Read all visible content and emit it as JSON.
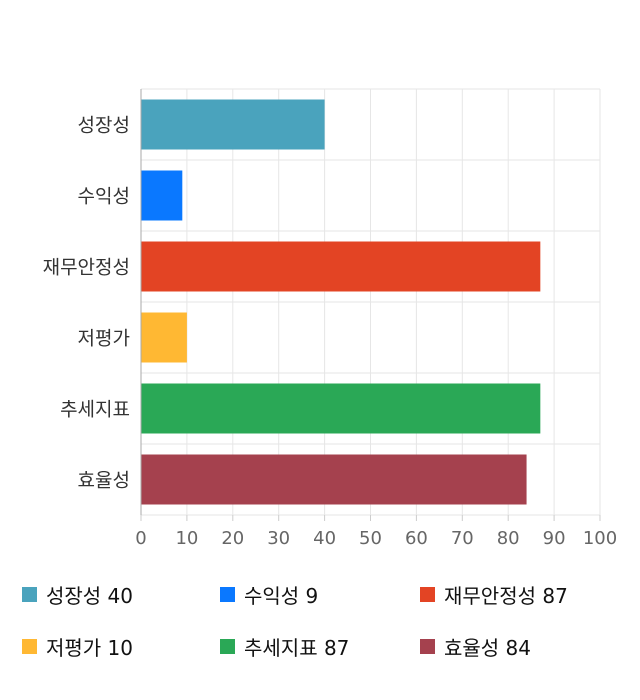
{
  "chart_data": {
    "type": "bar",
    "orientation": "horizontal",
    "categories": [
      "성장성",
      "수익성",
      "재무안정성",
      "저평가",
      "추세지표",
      "효율성"
    ],
    "values": [
      40,
      9,
      87,
      10,
      87,
      84
    ],
    "colors": [
      "#4aa3bd",
      "#0a78ff",
      "#e34424",
      "#ffb833",
      "#2aa856",
      "#a5414e"
    ],
    "xlim": [
      0,
      100
    ],
    "xticks": [
      "0",
      "10",
      "20",
      "30",
      "40",
      "50",
      "60",
      "70",
      "80",
      "90",
      "100"
    ],
    "grid": true,
    "legend_position": "bottom"
  },
  "legend": [
    {
      "label": "성장성 40",
      "color": "#4aa3bd"
    },
    {
      "label": "수익성 9",
      "color": "#0a78ff"
    },
    {
      "label": "재무안정성 87",
      "color": "#e34424"
    },
    {
      "label": "저평가 10",
      "color": "#ffb833"
    },
    {
      "label": "추세지표 87",
      "color": "#2aa856"
    },
    {
      "label": "효율성 84",
      "color": "#a5414e"
    }
  ]
}
